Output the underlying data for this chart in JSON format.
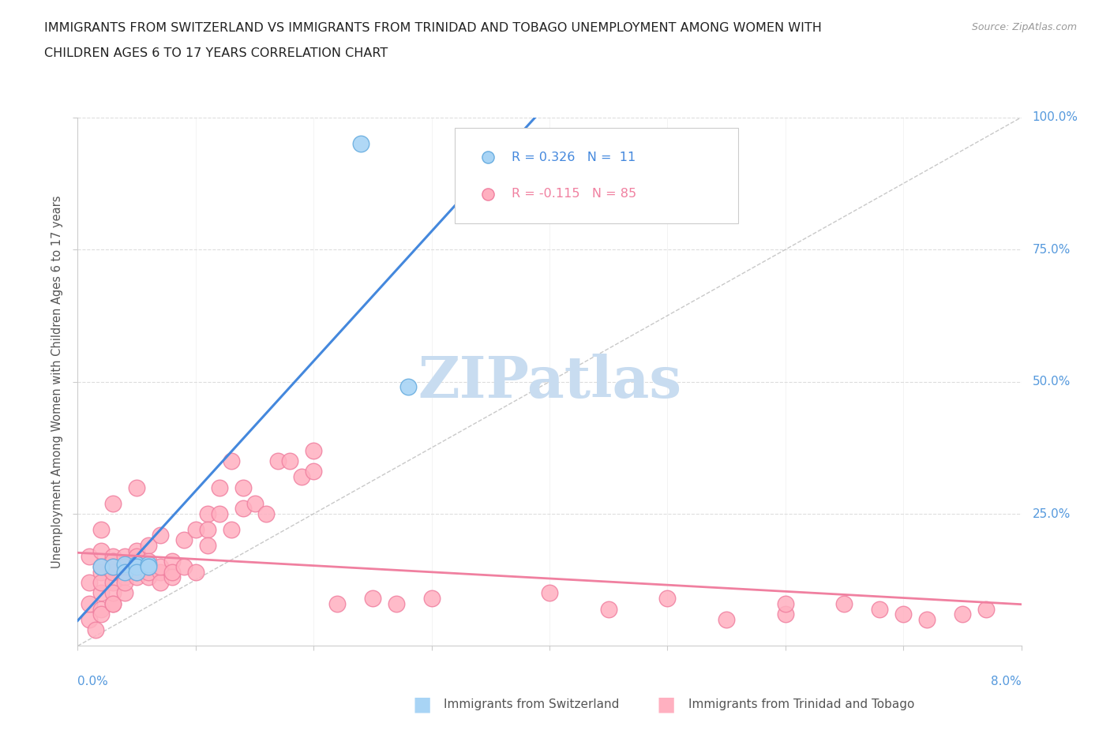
{
  "title_line1": "IMMIGRANTS FROM SWITZERLAND VS IMMIGRANTS FROM TRINIDAD AND TOBAGO UNEMPLOYMENT AMONG WOMEN WITH",
  "title_line2": "CHILDREN AGES 6 TO 17 YEARS CORRELATION CHART",
  "source": "Source: ZipAtlas.com",
  "ylabel": "Unemployment Among Women with Children Ages 6 to 17 years",
  "ylabel_ticks": [
    "25.0%",
    "50.0%",
    "75.0%",
    "100.0%"
  ],
  "ylabel_tick_vals": [
    0.25,
    0.5,
    0.75,
    1.0
  ],
  "xlim": [
    0.0,
    0.08
  ],
  "ylim": [
    0.0,
    1.0
  ],
  "label_switzerland": "Immigrants from Switzerland",
  "label_trinidad": "Immigrants from Trinidad and Tobago",
  "color_blue_fill": "#A8D4F5",
  "color_blue_edge": "#6AAEE0",
  "color_blue_line": "#4488DD",
  "color_pink_fill": "#FFB0C0",
  "color_pink_edge": "#F080A0",
  "color_pink_line": "#F080A0",
  "color_axis_labels": "#5599DD",
  "color_title": "#222222",
  "color_source": "#999999",
  "color_watermark": "#C8DCF0",
  "color_grid": "#DDDDDD",
  "color_diag_line": "#BBBBBB",
  "color_spine": "#CCCCCC",
  "switzerland_x": [
    0.002,
    0.003,
    0.004,
    0.004,
    0.005,
    0.005,
    0.005,
    0.006,
    0.006,
    0.028,
    0.024
  ],
  "switzerland_y": [
    0.15,
    0.15,
    0.155,
    0.14,
    0.155,
    0.15,
    0.14,
    0.155,
    0.15,
    0.49,
    0.95
  ],
  "trinidad_x": [
    0.001,
    0.001,
    0.001,
    0.001,
    0.0015,
    0.002,
    0.002,
    0.002,
    0.002,
    0.002,
    0.002,
    0.002,
    0.002,
    0.003,
    0.003,
    0.003,
    0.003,
    0.003,
    0.003,
    0.003,
    0.003,
    0.003,
    0.003,
    0.004,
    0.004,
    0.004,
    0.004,
    0.004,
    0.004,
    0.005,
    0.005,
    0.005,
    0.005,
    0.005,
    0.005,
    0.005,
    0.006,
    0.006,
    0.006,
    0.006,
    0.006,
    0.006,
    0.007,
    0.007,
    0.007,
    0.007,
    0.008,
    0.008,
    0.008,
    0.009,
    0.009,
    0.01,
    0.01,
    0.011,
    0.011,
    0.011,
    0.012,
    0.012,
    0.013,
    0.013,
    0.014,
    0.014,
    0.015,
    0.016,
    0.017,
    0.018,
    0.019,
    0.02,
    0.02,
    0.022,
    0.025,
    0.027,
    0.03,
    0.04,
    0.05,
    0.06,
    0.065,
    0.068,
    0.072,
    0.075,
    0.077,
    0.06,
    0.055,
    0.045,
    0.07
  ],
  "trinidad_y": [
    0.17,
    0.12,
    0.05,
    0.08,
    0.03,
    0.18,
    0.22,
    0.14,
    0.1,
    0.12,
    0.15,
    0.07,
    0.06,
    0.08,
    0.14,
    0.12,
    0.17,
    0.27,
    0.16,
    0.14,
    0.1,
    0.08,
    0.15,
    0.13,
    0.17,
    0.15,
    0.1,
    0.15,
    0.12,
    0.16,
    0.18,
    0.13,
    0.3,
    0.14,
    0.15,
    0.17,
    0.15,
    0.19,
    0.13,
    0.16,
    0.14,
    0.15,
    0.21,
    0.14,
    0.12,
    0.15,
    0.16,
    0.13,
    0.14,
    0.2,
    0.15,
    0.22,
    0.14,
    0.25,
    0.22,
    0.19,
    0.3,
    0.25,
    0.35,
    0.22,
    0.3,
    0.26,
    0.27,
    0.25,
    0.35,
    0.35,
    0.32,
    0.37,
    0.33,
    0.08,
    0.09,
    0.08,
    0.09,
    0.1,
    0.09,
    0.06,
    0.08,
    0.07,
    0.05,
    0.06,
    0.07,
    0.08,
    0.05,
    0.07,
    0.06
  ]
}
